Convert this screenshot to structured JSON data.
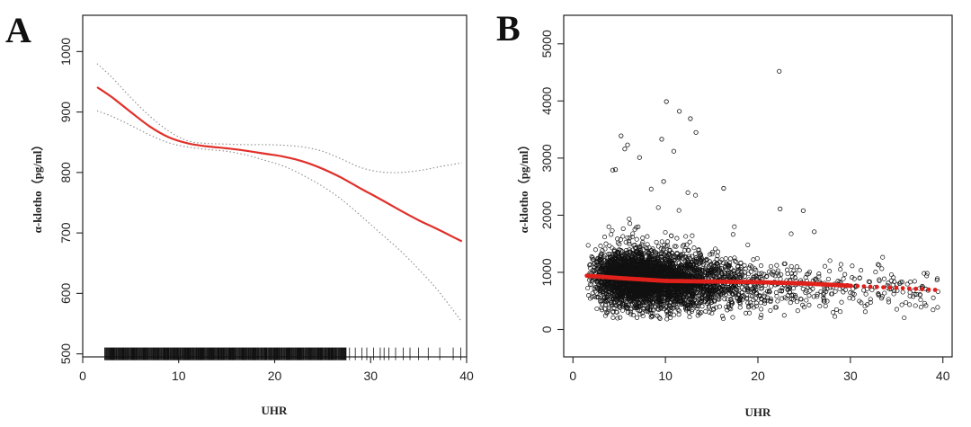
{
  "figure": {
    "panels": [
      {
        "letter": "A"
      },
      {
        "letter": "B"
      }
    ]
  },
  "chart_data": [
    {
      "panel": "A",
      "type": "line",
      "xlabel": "UHR",
      "ylabel": "α-klotho（pg/ml）",
      "xlim": [
        0,
        40
      ],
      "ylim": [
        495,
        1060
      ],
      "xticks": [
        0,
        10,
        20,
        30,
        40
      ],
      "yticks": [
        500,
        600,
        700,
        800,
        900,
        1000
      ],
      "grid": false,
      "colors": {
        "fit": "#e0302a",
        "ci": "#8c8c8c",
        "rug": "#111111"
      },
      "series": [
        {
          "role": "fit",
          "style": "solid",
          "x": [
            1.5,
            3,
            5,
            7,
            9,
            11,
            13,
            15,
            17,
            19,
            21,
            23,
            25,
            27,
            29,
            31,
            33,
            35,
            37,
            39.5
          ],
          "y": [
            941,
            925,
            900,
            876,
            858,
            848,
            843,
            840,
            836,
            831,
            826,
            818,
            806,
            791,
            773,
            756,
            738,
            721,
            706,
            686
          ]
        },
        {
          "role": "ci-upper",
          "style": "dotted",
          "x": [
            1.5,
            3,
            5,
            7,
            9,
            11,
            13,
            15,
            17,
            19,
            21,
            23,
            25,
            27,
            29,
            31,
            33,
            35,
            37,
            39.5
          ],
          "y": [
            980,
            958,
            924,
            893,
            868,
            852,
            848,
            847,
            846,
            846,
            845,
            842,
            835,
            822,
            808,
            801,
            800,
            803,
            809,
            816
          ]
        },
        {
          "role": "ci-lower",
          "style": "dotted",
          "x": [
            1.5,
            3,
            5,
            7,
            9,
            11,
            13,
            15,
            17,
            19,
            21,
            23,
            25,
            27,
            29,
            31,
            33,
            35,
            37,
            39.5
          ],
          "y": [
            902,
            893,
            878,
            862,
            849,
            842,
            838,
            835,
            829,
            820,
            810,
            795,
            777,
            755,
            728,
            700,
            672,
            640,
            605,
            553
          ]
        }
      ],
      "rug": {
        "y": 500,
        "x_dense": [
          2.3,
          27.5
        ],
        "x_sparse": [
          27.8,
          28.4,
          29.1,
          29.6,
          30.3,
          31.0,
          31.4,
          31.9,
          32.6,
          33.4,
          34.1,
          35.0,
          36.0,
          37.2,
          38.6,
          39.4
        ]
      }
    },
    {
      "panel": "B",
      "type": "scatter",
      "xlabel": "UHR",
      "ylabel": "α-klotho（pg/ml）",
      "xlim": [
        -1,
        41
      ],
      "ylim": [
        -480,
        5500
      ],
      "xticks": [
        0,
        10,
        20,
        30,
        40
      ],
      "yticks": [
        0,
        1000,
        2000,
        3000,
        4000,
        5000
      ],
      "grid": false,
      "colors": {
        "points": "#111111",
        "fit": "#e0201a"
      },
      "n_points_approx": 4200,
      "cloud_x_range": [
        1.5,
        40
      ],
      "cloud_y_range": [
        170,
        2500
      ],
      "outliers": [
        {
          "x": 22.3,
          "y": 4520
        },
        {
          "x": 10.1,
          "y": 3990
        },
        {
          "x": 11.5,
          "y": 3820
        },
        {
          "x": 12.7,
          "y": 3690
        },
        {
          "x": 13.3,
          "y": 3450
        },
        {
          "x": 5.2,
          "y": 3390
        },
        {
          "x": 9.6,
          "y": 3330
        },
        {
          "x": 5.9,
          "y": 3230
        },
        {
          "x": 5.6,
          "y": 3160
        },
        {
          "x": 10.9,
          "y": 3120
        },
        {
          "x": 7.2,
          "y": 3010
        },
        {
          "x": 4.3,
          "y": 2790
        },
        {
          "x": 4.6,
          "y": 2800
        },
        {
          "x": 9.8,
          "y": 2590
        },
        {
          "x": 16.3,
          "y": 2470
        },
        {
          "x": 22.4,
          "y": 2110
        },
        {
          "x": 24.9,
          "y": 2080
        },
        {
          "x": 26.1,
          "y": 1710
        }
      ],
      "fit": {
        "x": [
          1.5,
          5,
          10,
          15,
          20,
          25,
          30,
          35,
          39.5
        ],
        "y": [
          941,
          900,
          850,
          839,
          828,
          805,
          765,
          728,
          690
        ]
      }
    }
  ]
}
